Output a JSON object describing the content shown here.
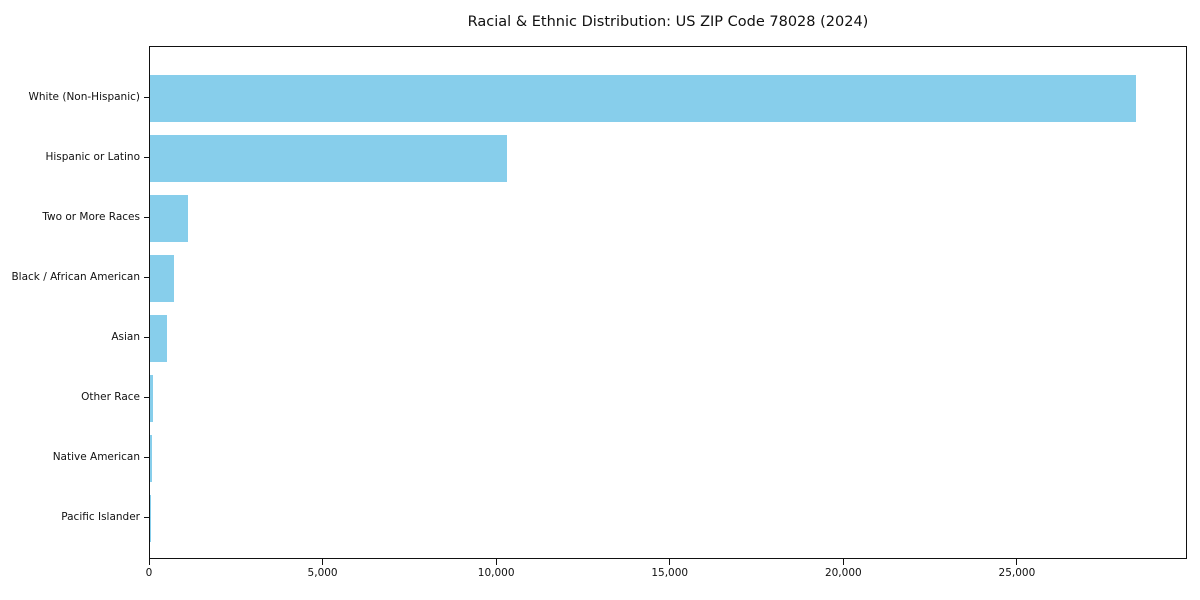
{
  "title": "Racial & Ethnic Distribution: US ZIP Code 78028 (2024)",
  "chart_data": {
    "type": "bar",
    "orientation": "horizontal",
    "title": "Racial & Ethnic Distribution: US ZIP Code 78028 (2024)",
    "categories": [
      "White (Non-Hispanic)",
      "Hispanic or Latino",
      "Two or More Races",
      "Black / African American",
      "Asian",
      "Other Race",
      "Native American",
      "Pacific Islander"
    ],
    "values": [
      28460,
      10310,
      1100,
      700,
      500,
      95,
      45,
      12
    ],
    "xlabel": "",
    "ylabel": "",
    "xlim": [
      0,
      29900
    ],
    "xticks": [
      0,
      5000,
      10000,
      15000,
      20000,
      25000
    ],
    "xtick_labels": [
      "0",
      "5,000",
      "10,000",
      "15,000",
      "20,000",
      "25,000"
    ],
    "bar_color": "#87ceeb",
    "background_color": "#ffffff",
    "spine_color": "#111111",
    "grid": false,
    "legend_position": "none"
  }
}
